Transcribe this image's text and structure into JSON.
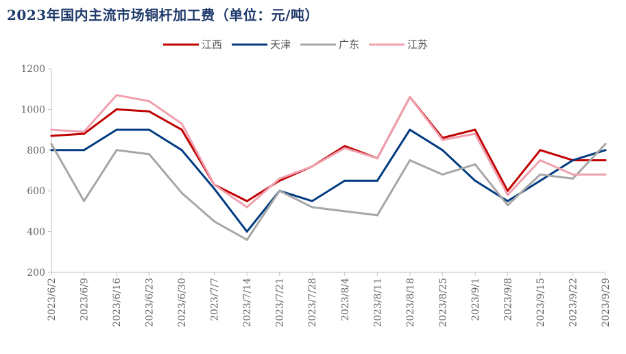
{
  "chart_data": {
    "type": "line",
    "title": "2023年国内主流市场铜杆加工费（单位：元/吨）",
    "xlabel": "",
    "ylabel": "",
    "ylim": [
      200,
      1200
    ],
    "yticks": [
      200,
      400,
      600,
      800,
      1000,
      1200
    ],
    "grid": false,
    "legend_position": "top-center",
    "x": [
      "2023/6/2",
      "2023/6/9",
      "2023/6/16",
      "2023/6/23",
      "2023/6/30",
      "2023/7/7",
      "2023/7/14",
      "2023/7/21",
      "2023/7/28",
      "2023/8/4",
      "2023/8/11",
      "2023/8/18",
      "2023/8/25",
      "2023/9/1",
      "2023/9/8",
      "2023/9/15",
      "2023/9/22",
      "2023/9/29"
    ],
    "series": [
      {
        "name": "江西",
        "color": "#c00000",
        "values": [
          870,
          880,
          1000,
          990,
          900,
          630,
          550,
          650,
          720,
          820,
          760,
          1060,
          860,
          900,
          600,
          800,
          750,
          750
        ]
      },
      {
        "name": "天津",
        "color": "#003a80",
        "values": [
          800,
          800,
          900,
          900,
          800,
          610,
          400,
          600,
          550,
          650,
          650,
          900,
          800,
          650,
          550,
          650,
          750,
          800
        ]
      },
      {
        "name": "广东",
        "color": "#a6a6a6",
        "values": [
          830,
          550,
          800,
          780,
          590,
          450,
          360,
          600,
          520,
          500,
          480,
          750,
          680,
          730,
          530,
          680,
          660,
          830
        ]
      },
      {
        "name": "江苏",
        "color": "#f0a0ae",
        "values": [
          900,
          890,
          1070,
          1040,
          930,
          630,
          520,
          660,
          720,
          810,
          760,
          1060,
          850,
          880,
          580,
          750,
          680,
          680
        ]
      }
    ]
  }
}
